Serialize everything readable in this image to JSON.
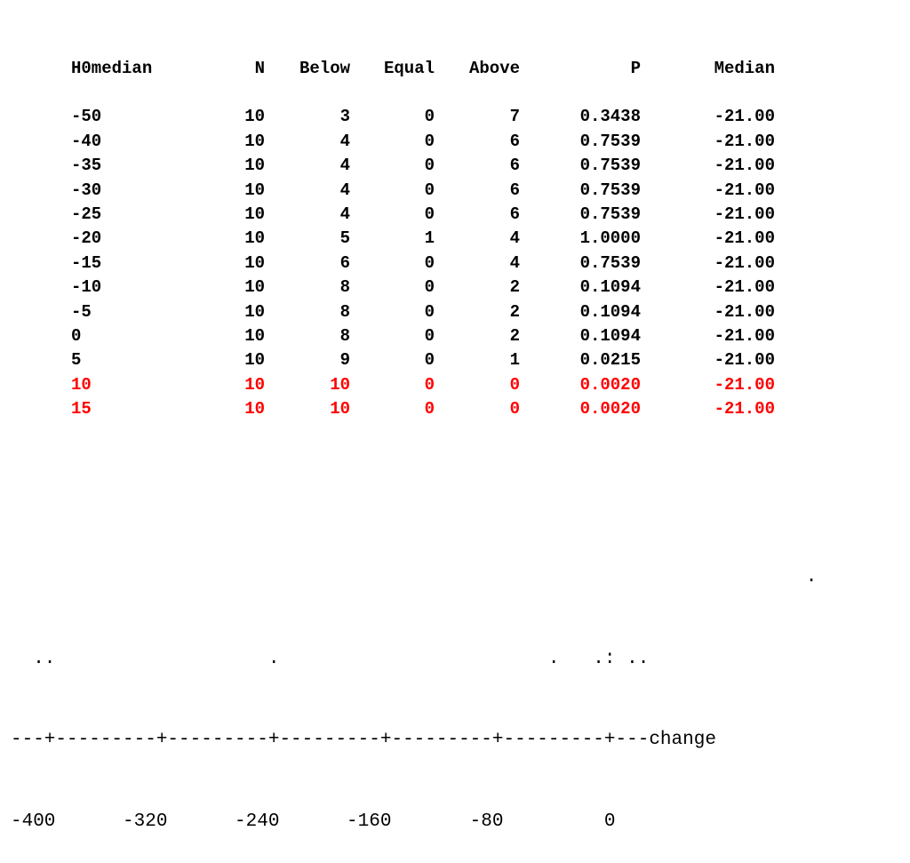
{
  "table": {
    "columns": [
      "H0median",
      "N",
      "Below",
      "Equal",
      "Above",
      "P",
      "Median"
    ],
    "rows": [
      [
        "-50",
        "10",
        "3",
        "0",
        "7",
        "0.3438",
        "-21.00"
      ],
      [
        "-40",
        "10",
        "4",
        "0",
        "6",
        "0.7539",
        "-21.00"
      ],
      [
        "-35",
        "10",
        "4",
        "0",
        "6",
        "0.7539",
        "-21.00"
      ],
      [
        "-30",
        "10",
        "4",
        "0",
        "6",
        "0.7539",
        "-21.00"
      ],
      [
        "-25",
        "10",
        "4",
        "0",
        "6",
        "0.7539",
        "-21.00"
      ],
      [
        "-20",
        "10",
        "5",
        "1",
        "4",
        "1.0000",
        "-21.00"
      ],
      [
        "-15",
        "10",
        "6",
        "0",
        "4",
        "0.7539",
        "-21.00"
      ],
      [
        "-10",
        "10",
        "8",
        "0",
        "2",
        "0.1094",
        "-21.00"
      ],
      [
        "-5",
        "10",
        "8",
        "0",
        "2",
        "0.1094",
        "-21.00"
      ],
      [
        "0",
        "10",
        "8",
        "0",
        "2",
        "0.1094",
        "-21.00"
      ],
      [
        "5",
        "10",
        "9",
        "0",
        "1",
        "0.0215",
        "-21.00"
      ],
      [
        "10",
        "10",
        "10",
        "0",
        "0",
        "0.0020",
        "-21.00"
      ],
      [
        "15",
        "10",
        "10",
        "0",
        "0",
        "0.0020",
        "-21.00"
      ]
    ],
    "highlighted_rows": [
      11,
      12
    ],
    "highlight_color": "#ff0000"
  },
  "dotplot": {
    "lines": [
      "                                                                       .",
      "  ..                   .                        .   .: ..",
      "---+---------+---------+---------+---------+---------+---change",
      "-400      -320      -240      -160       -80         0"
    ]
  }
}
